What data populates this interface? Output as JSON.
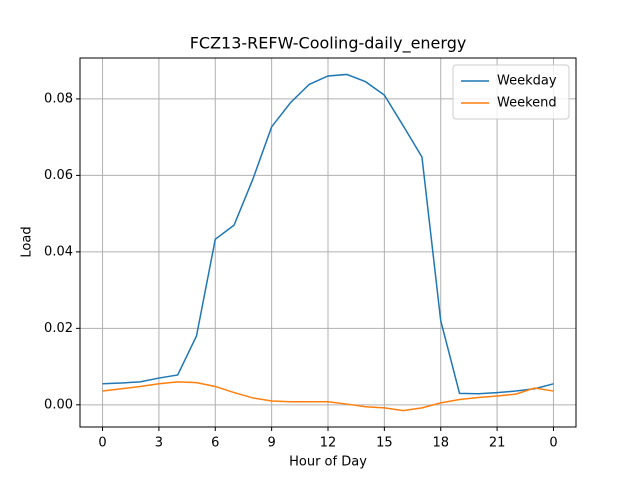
{
  "chart_data": {
    "type": "line",
    "title": "FCZ13-REFW-Cooling-daily_energy",
    "x_label": "Hour of Day",
    "y_label": "Load",
    "x": [
      0,
      1,
      2,
      3,
      4,
      5,
      6,
      7,
      8,
      9,
      10,
      11,
      12,
      13,
      14,
      15,
      16,
      17,
      18,
      19,
      20,
      21,
      22,
      23,
      24
    ],
    "series": [
      {
        "name": "Weekday",
        "color": "#1f77b4",
        "values": [
          0.0055,
          0.0057,
          0.006,
          0.007,
          0.0078,
          0.018,
          0.0433,
          0.047,
          0.059,
          0.0727,
          0.079,
          0.0838,
          0.086,
          0.0864,
          0.0845,
          0.081,
          0.073,
          0.0648,
          0.022,
          0.003,
          0.0029,
          0.0032,
          0.0036,
          0.0042,
          0.0055
        ]
      },
      {
        "name": "Weekend",
        "color": "#ff7f0e",
        "values": [
          0.0036,
          0.0042,
          0.0048,
          0.0055,
          0.006,
          0.0058,
          0.0048,
          0.0032,
          0.0018,
          0.001,
          0.0008,
          0.0008,
          0.0008,
          0.0002,
          -0.0005,
          -0.0008,
          -0.0015,
          -0.0008,
          0.0005,
          0.0014,
          0.0019,
          0.0023,
          0.0028,
          0.0044,
          0.0036
        ]
      }
    ],
    "xlim": [
      -1.2,
      25.2
    ],
    "xticks": [
      0,
      3,
      6,
      9,
      12,
      15,
      18,
      21,
      {
        "value": 24,
        "label": "0"
      }
    ],
    "ylim": [
      -0.0058,
      0.0907
    ],
    "yticks": [
      {
        "value": 0,
        "label": "0.00"
      },
      {
        "value": 0.02,
        "label": "0.02"
      },
      {
        "value": 0.04,
        "label": "0.04"
      },
      {
        "value": 0.06,
        "label": "0.06"
      },
      {
        "value": 0.08,
        "label": "0.08"
      }
    ],
    "grid": true,
    "legend": "upper-right"
  }
}
